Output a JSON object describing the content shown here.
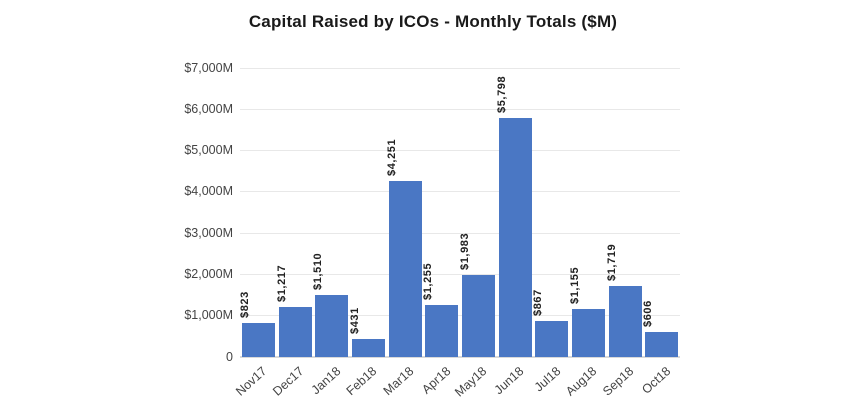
{
  "chart_data": {
    "type": "bar",
    "title": "Capital Raised by ICOs - Monthly Totals ($M)",
    "categories": [
      "Nov17",
      "Dec17",
      "Jan18",
      "Feb18",
      "Mar18",
      "Apr18",
      "May18",
      "Jun18",
      "Jul18",
      "Aug18",
      "Sep18",
      "Oct18"
    ],
    "values": [
      823,
      1217,
      1510,
      431,
      4251,
      1255,
      1983,
      5798,
      867,
      1155,
      1719,
      606
    ],
    "value_labels": [
      "$823",
      "$1,217",
      "$1,510",
      "$431",
      "$4,251",
      "$1,255",
      "$1,983",
      "$5,798",
      "$867",
      "$1,155",
      "$1,719",
      "$606"
    ],
    "y_tick_labels": [
      "$7,000M",
      "$6,000M",
      "$5,000M",
      "$4,000M",
      "$3,000M",
      "$2,000M",
      "$1,000M",
      "0"
    ],
    "y_tick_values": [
      7000,
      6000,
      5000,
      4000,
      3000,
      2000,
      1000,
      0
    ],
    "ylim": [
      0,
      7000
    ],
    "xlabel": "",
    "ylabel": "",
    "legend_position": "none",
    "grid_on": true,
    "colors": {
      "bar": "#4a77c4",
      "gridline": "#e8e8e8",
      "baseline": "#d9d9d9",
      "axis_text": "#444444",
      "annotation_text": "#212121",
      "title_text": "#1a1a1a",
      "background": "#ffffff"
    }
  }
}
